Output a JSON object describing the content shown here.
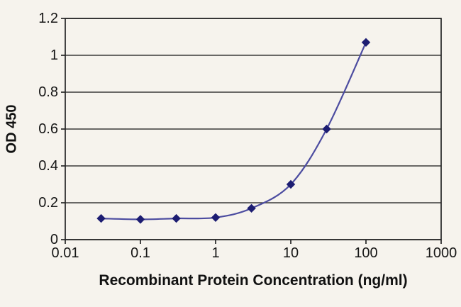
{
  "colors": {
    "background": "#f6f3ed",
    "grid": "#3a3a3a",
    "frame": "#262626",
    "text": "#161616",
    "line": "#4c4ca0",
    "marker": "#1d1d72"
  },
  "chart_data": {
    "type": "line",
    "title": "",
    "xlabel": "Recombinant Protein Concentration (ng/ml)",
    "ylabel": "OD 450",
    "x_scale": "log",
    "xlim": [
      0.01,
      1000
    ],
    "ylim": [
      0,
      1.2
    ],
    "x_ticks": [
      0.01,
      0.1,
      1,
      10,
      100,
      1000
    ],
    "x_tick_labels": [
      "0.01",
      "0.1",
      "1",
      "10",
      "100",
      "1000"
    ],
    "y_ticks": [
      0,
      0.2,
      0.4,
      0.6,
      0.8,
      1,
      1.2
    ],
    "y_tick_labels": [
      "0",
      "0.2",
      "0.4",
      "0.6",
      "0.8",
      "1",
      "1.2"
    ],
    "grid": "horizontal",
    "legend": "none",
    "series": [
      {
        "name": "OD 450",
        "marker": "diamond",
        "x": [
          0.03,
          0.1,
          0.3,
          1,
          3,
          10,
          30,
          100
        ],
        "y": [
          0.115,
          0.11,
          0.115,
          0.12,
          0.17,
          0.3,
          0.6,
          1.07
        ]
      }
    ]
  }
}
